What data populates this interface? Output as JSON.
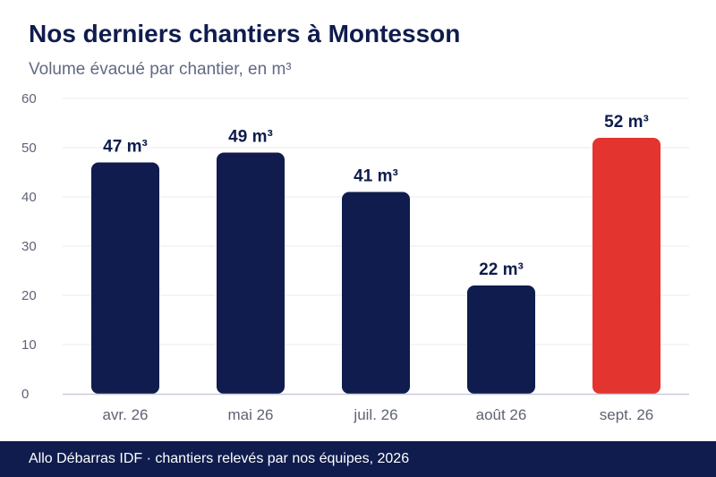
{
  "title": "Nos derniers chantiers à Montesson",
  "subtitle": "Volume évacué par chantier, en m³",
  "footer": "Allo Débarras IDF · chantiers relevés par nos équipes, 2026",
  "colors": {
    "bar": "#0f1c4d",
    "highlight": "#e3342f",
    "grid": "#ebebeb",
    "axis": "#c9cbd8",
    "tick_text": "#5f6374",
    "label_text": "#0f1c4d"
  },
  "chart_data": {
    "type": "bar",
    "categories": [
      "avr. 26",
      "mai 26",
      "juil. 26",
      "août 26",
      "sept. 26"
    ],
    "values": [
      47,
      49,
      41,
      22,
      52
    ],
    "data_labels": [
      "47 m³",
      "49 m³",
      "41 m³",
      "22 m³",
      "52 m³"
    ],
    "highlight_index": 4,
    "ylim": [
      0,
      60
    ],
    "yticks": [
      0,
      10,
      20,
      30,
      40,
      50,
      60
    ],
    "xlabel": "",
    "ylabel": "",
    "grid": true
  }
}
